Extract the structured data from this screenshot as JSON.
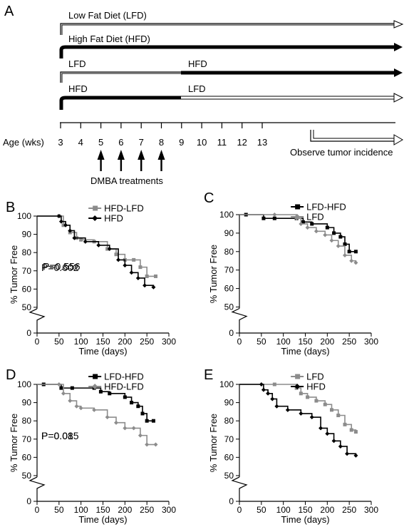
{
  "panel_a": {
    "letter": "A",
    "diet_rows": [
      {
        "segments": [
          {
            "label": "Low Fat Diet (LFD)",
            "diet": "LFD"
          }
        ]
      },
      {
        "segments": [
          {
            "label": "High Fat Diet (HFD)",
            "diet": "HFD"
          }
        ]
      },
      {
        "segments": [
          {
            "label": "LFD",
            "diet": "LFD"
          },
          {
            "label": "HFD",
            "diet": "HFD"
          }
        ]
      },
      {
        "segments": [
          {
            "label": "HFD",
            "diet": "HFD"
          },
          {
            "label": "LFD",
            "diet": "LFD"
          }
        ]
      }
    ],
    "age_label": "Age (wks)",
    "age_ticks": [
      "3",
      "4",
      "5",
      "6",
      "7",
      "8",
      "9",
      "10",
      "11",
      "12",
      "13"
    ],
    "treatment_weeks": [
      5,
      6,
      7,
      8
    ],
    "treatments_label": "DMBA treatments",
    "observe_label": "Observe tumor incidence"
  },
  "chart_data": [
    {
      "type": "line",
      "panel": "B",
      "xlabel": "Time (days)",
      "ylabel": "% Tumor Free",
      "xlim": [
        0,
        300
      ],
      "ylim": [
        0,
        100
      ],
      "xticks": [
        "0",
        "50",
        "100",
        "150",
        "200",
        "250",
        "300"
      ],
      "yticks": [
        "0",
        "50",
        "60",
        "70",
        "80",
        "90",
        "100"
      ],
      "axis_break": true,
      "annotation": "P=0.602",
      "legend_position": "top-right",
      "series": [
        {
          "name": "HFD-LFD",
          "color": "#8c8c8c",
          "marker": "square",
          "x": [
            0,
            50,
            60,
            75,
            90,
            100,
            130,
            160,
            180,
            200,
            220,
            235,
            250,
            270
          ],
          "y": [
            100,
            100,
            95,
            91,
            88,
            87,
            86,
            82,
            79,
            76,
            76,
            72,
            67,
            67
          ]
        },
        {
          "name": "HFD",
          "color": "#000000",
          "marker": "diamond",
          "x": [
            0,
            50,
            55,
            65,
            75,
            85,
            110,
            140,
            165,
            185,
            200,
            215,
            230,
            245,
            265
          ],
          "y": [
            100,
            100,
            97,
            95,
            92,
            88,
            86,
            84,
            82,
            76,
            73,
            69,
            66,
            62,
            61
          ]
        }
      ]
    },
    {
      "type": "line",
      "panel": "C",
      "xlabel": "Time (days)",
      "ylabel": "% Tumor Free",
      "xlim": [
        0,
        300
      ],
      "ylim": [
        0,
        100
      ],
      "xticks": [
        "0",
        "50",
        "100",
        "150",
        "200",
        "250",
        "300"
      ],
      "yticks": [
        "0",
        "50",
        "60",
        "70",
        "80",
        "90",
        "100"
      ],
      "axis_break": true,
      "annotation": "P=0.556",
      "legend_position": "top-right",
      "series": [
        {
          "name": "LFD-HFD",
          "color": "#000000",
          "marker": "square",
          "x": [
            0,
            15,
            55,
            80,
            130,
            145,
            165,
            200,
            215,
            230,
            240,
            250,
            265
          ],
          "y": [
            100,
            100,
            98,
            98,
            98,
            96,
            95,
            93,
            90,
            88,
            84,
            80,
            80
          ]
        },
        {
          "name": "LFD",
          "color": "#8c8c8c",
          "marker": "diamond",
          "x": [
            0,
            80,
            130,
            140,
            155,
            175,
            195,
            210,
            225,
            240,
            255,
            265
          ],
          "y": [
            100,
            100,
            98,
            95,
            93,
            91,
            89,
            86,
            83,
            78,
            75,
            74
          ]
        }
      ]
    },
    {
      "type": "line",
      "panel": "D",
      "xlabel": "Time (days)",
      "ylabel": "% Tumor Free",
      "xlim": [
        0,
        300
      ],
      "ylim": [
        0,
        100
      ],
      "xticks": [
        "0",
        "50",
        "100",
        "150",
        "200",
        "250",
        "300"
      ],
      "yticks": [
        "0",
        "50",
        "60",
        "70",
        "80",
        "90",
        "100"
      ],
      "axis_break": true,
      "annotation": "P=0.08",
      "legend_position": "top-right",
      "series": [
        {
          "name": "LFD-HFD",
          "color": "#000000",
          "marker": "square",
          "x": [
            0,
            15,
            55,
            80,
            130,
            145,
            165,
            200,
            215,
            230,
            240,
            250,
            265
          ],
          "y": [
            100,
            100,
            98,
            98,
            98,
            96,
            95,
            93,
            90,
            88,
            84,
            80,
            80
          ]
        },
        {
          "name": "HFD-LFD",
          "color": "#8c8c8c",
          "marker": "diamond",
          "x": [
            0,
            50,
            60,
            75,
            90,
            100,
            130,
            160,
            180,
            200,
            220,
            235,
            250,
            270
          ],
          "y": [
            100,
            100,
            95,
            91,
            88,
            87,
            86,
            82,
            79,
            76,
            76,
            72,
            67,
            67
          ]
        }
      ]
    },
    {
      "type": "line",
      "panel": "E",
      "xlabel": "Time (days)",
      "ylabel": "% Tumor Free",
      "xlim": [
        0,
        300
      ],
      "ylim": [
        0,
        100
      ],
      "xticks": [
        "0",
        "50",
        "100",
        "150",
        "200",
        "250",
        "300"
      ],
      "yticks": [
        "0",
        "50",
        "60",
        "70",
        "80",
        "90",
        "100"
      ],
      "axis_break": true,
      "annotation": "P=0.015",
      "legend_position": "top-right",
      "series": [
        {
          "name": "LFD",
          "color": "#8c8c8c",
          "marker": "square",
          "x": [
            0,
            80,
            130,
            140,
            155,
            175,
            195,
            210,
            225,
            240,
            255,
            265
          ],
          "y": [
            100,
            100,
            98,
            95,
            93,
            91,
            89,
            86,
            83,
            78,
            75,
            74
          ]
        },
        {
          "name": "HFD",
          "color": "#000000",
          "marker": "diamond",
          "x": [
            0,
            50,
            55,
            65,
            75,
            85,
            110,
            140,
            165,
            185,
            200,
            215,
            230,
            245,
            265
          ],
          "y": [
            100,
            100,
            97,
            95,
            92,
            88,
            86,
            84,
            82,
            76,
            73,
            69,
            66,
            62,
            61
          ]
        }
      ]
    }
  ]
}
